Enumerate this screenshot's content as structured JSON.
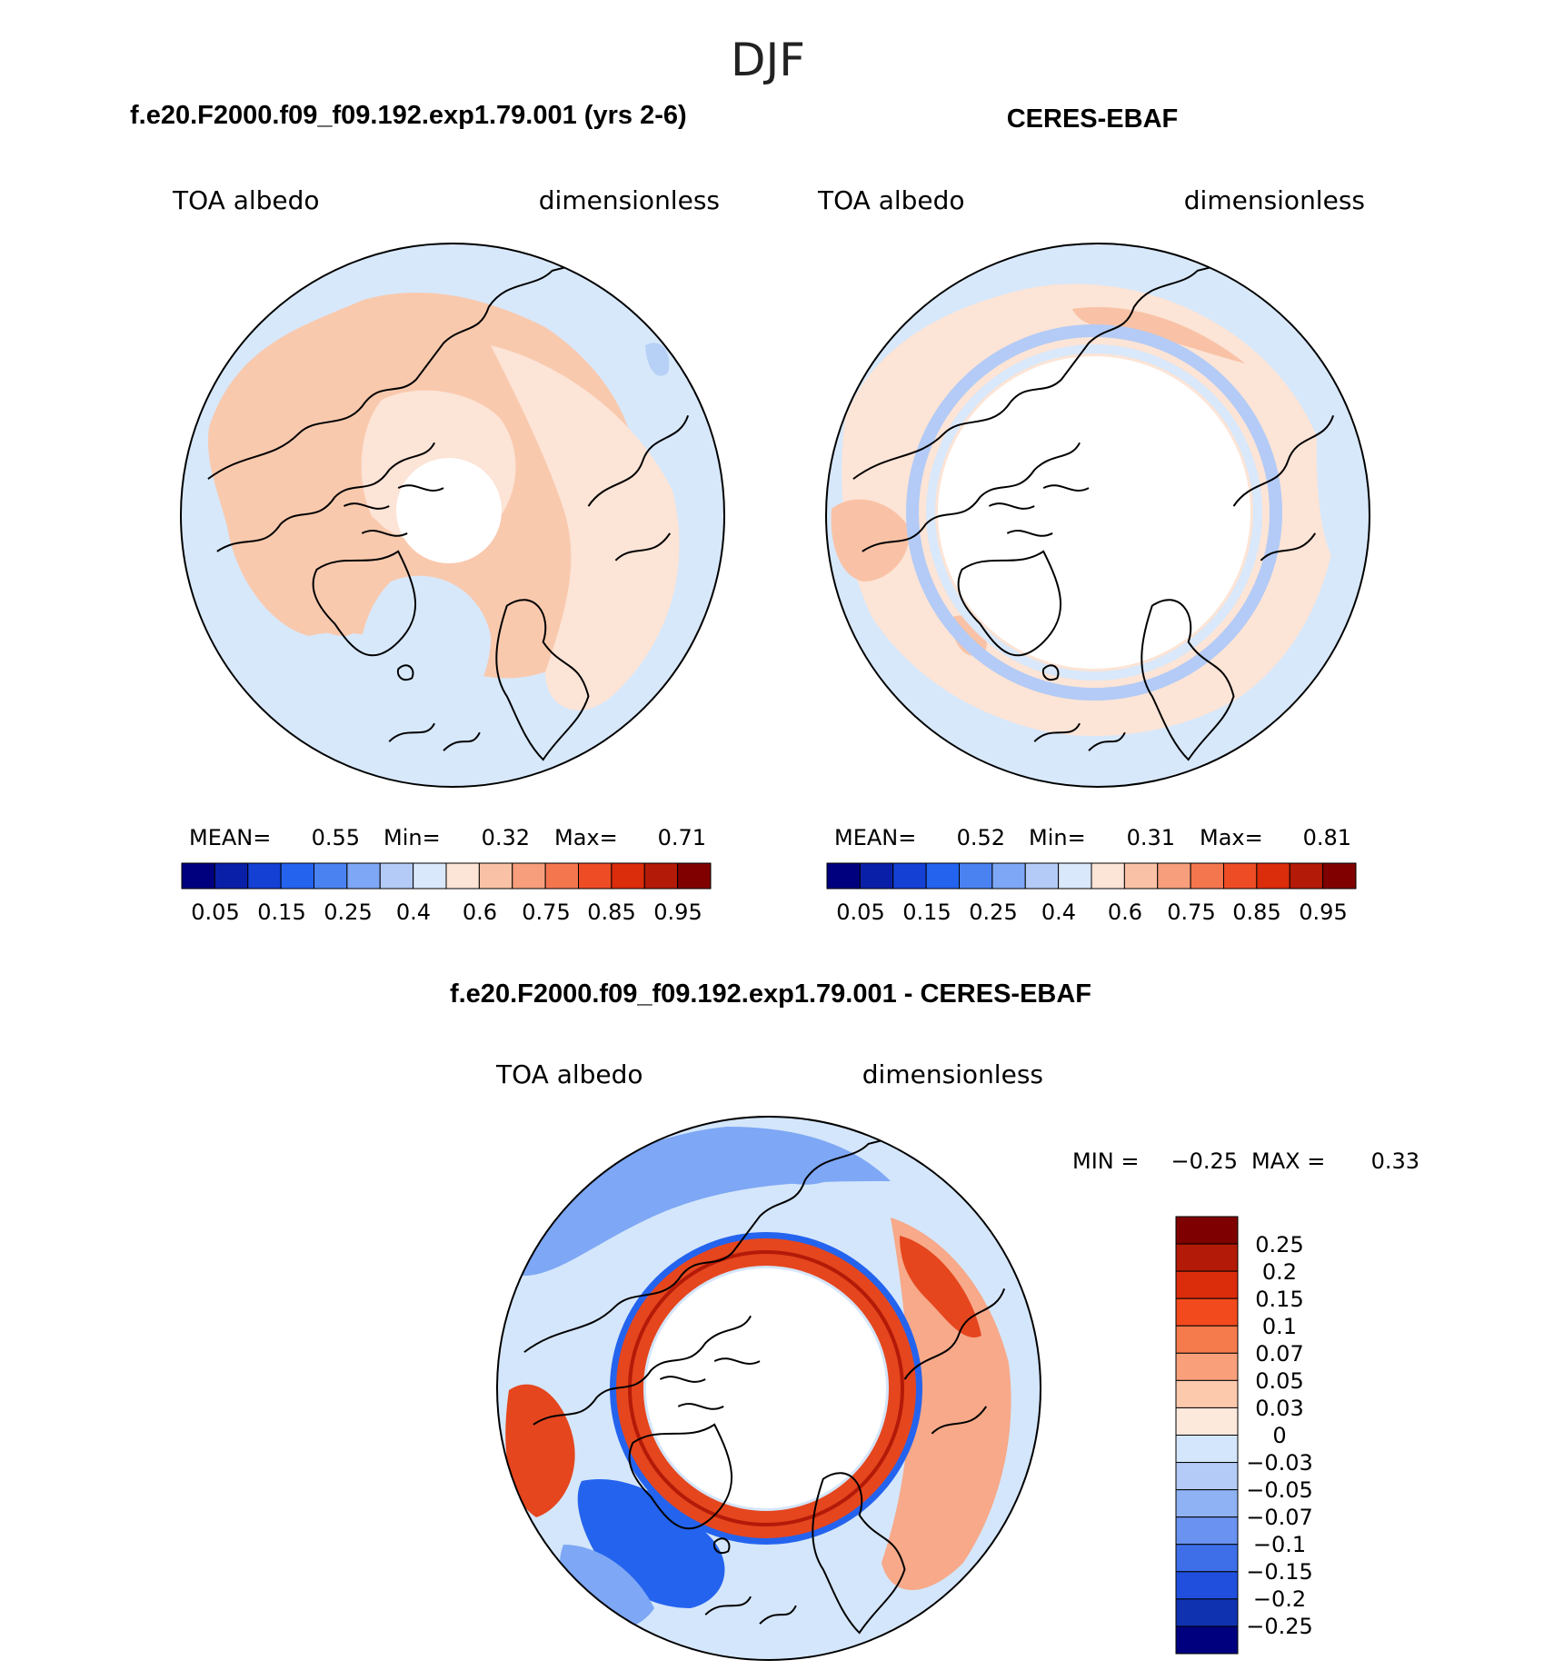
{
  "figure_title": "DJF",
  "panels": [
    {
      "id": "model",
      "title": "f.e20.F2000.f09_f09.192.exp1.79.001 (yrs 2-6)",
      "left_label": "TOA albedo",
      "right_label": "dimensionless",
      "stats": {
        "mean_label": "MEAN=",
        "mean": "0.55",
        "min_label": "Min=",
        "min": "0.32",
        "max_label": "Max=",
        "max": "0.71"
      }
    },
    {
      "id": "obs",
      "title": "CERES-EBAF",
      "left_label": "TOA albedo",
      "right_label": "dimensionless",
      "stats": {
        "mean_label": "MEAN=",
        "mean": "0.52",
        "min_label": "Min=",
        "min": "0.31",
        "max_label": "Max=",
        "max": "0.81"
      }
    },
    {
      "id": "diff",
      "title": "f.e20.F2000.f09_f09.192.exp1.79.001 - CERES-EBAF",
      "left_label": "TOA albedo",
      "right_label": "dimensionless",
      "stats": {
        "min_label": "MIN =",
        "min": "−0.25",
        "max_label": "MAX =",
        "max": "0.33"
      }
    }
  ],
  "colorbar_abs": {
    "colors": [
      "#00007f",
      "#0a1fa8",
      "#1440d4",
      "#2463ee",
      "#4a82f2",
      "#7ea7f5",
      "#b3cbf6",
      "#d9e8fa",
      "#fce4d6",
      "#f9c2a6",
      "#f79e7c",
      "#f4764f",
      "#ee4c25",
      "#db2c0c",
      "#b31a08",
      "#800000"
    ],
    "tick_labels": [
      "0.05",
      "0.15",
      "0.25",
      "0.4",
      "0.6",
      "0.75",
      "0.85",
      "0.95"
    ]
  },
  "colorbar_diff": {
    "colors": [
      "#7f0000",
      "#b31a08",
      "#db2c0c",
      "#f24a1c",
      "#f57b4d",
      "#f9a07b",
      "#fcc9ad",
      "#fde8dc",
      "#d4e6fb",
      "#b3cbf6",
      "#8fb2f4",
      "#6a92f0",
      "#3e6fe9",
      "#1f4fdc",
      "#0f32b0",
      "#00007f"
    ],
    "tick_labels": [
      "0.25",
      "0.2",
      "0.15",
      "0.1",
      "0.07",
      "0.05",
      "0.03",
      "0",
      "−0.03",
      "−0.05",
      "−0.07",
      "−0.1",
      "−0.15",
      "−0.2",
      "−0.25"
    ]
  },
  "map_colors": {
    "land_line": "#000000",
    "model_bg": "#d7e8fb",
    "model_warm": "#f9c9ae",
    "model_light": "#fce4d6",
    "model_blue": "#b7d0f6",
    "obs_bg": "#d7e8fb",
    "obs_light": "#fce4d6",
    "obs_warm": "#f9c2a6",
    "diff_bg": "#d4e6fb",
    "diff_blue": "#7ea7f5",
    "diff_deep": "#2463ee",
    "diff_red": "#e5461e",
    "diff_salmon": "#f7a989"
  }
}
